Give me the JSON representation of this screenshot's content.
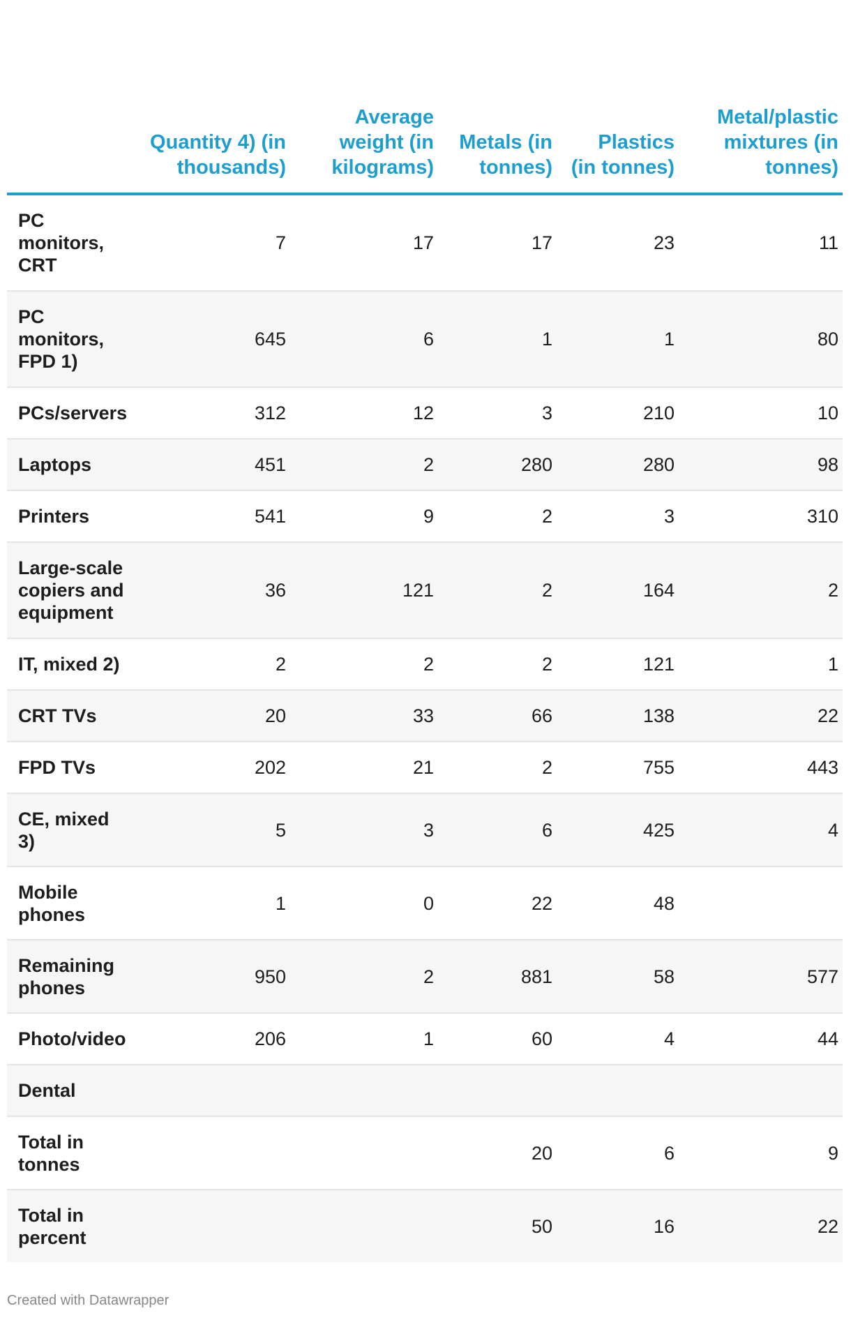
{
  "chart_data": {
    "type": "table",
    "columns": [
      "",
      "Quantity 4) (in thousands)",
      "Average weight (in kilograms)",
      "Metals (in tonnes)",
      "Plastics (in tonnes)",
      "Metal/plastic mixtures (in tonnes)"
    ],
    "rows": [
      [
        "PC monitors, CRT",
        "7",
        "17",
        "17",
        "23",
        "11"
      ],
      [
        "PC monitors, FPD 1)",
        "645",
        "6",
        "1",
        "1",
        "80"
      ],
      [
        "PCs/servers",
        "312",
        "12",
        "3",
        "210",
        "10"
      ],
      [
        "Laptops",
        "451",
        "2",
        "280",
        "280",
        "98"
      ],
      [
        "Printers",
        "541",
        "9",
        "2",
        "3",
        "310"
      ],
      [
        "Large-scale copiers and equipment",
        "36",
        "121",
        "2",
        "164",
        "2"
      ],
      [
        "IT, mixed 2)",
        "2",
        "2",
        "2",
        "121",
        "1"
      ],
      [
        "CRT TVs",
        "20",
        "33",
        "66",
        "138",
        "22"
      ],
      [
        "FPD TVs",
        "202",
        "21",
        "2",
        "755",
        "443"
      ],
      [
        "CE, mixed 3)",
        "5",
        "3",
        "6",
        "425",
        "4"
      ],
      [
        "Mobile phones",
        "1",
        "0",
        "22",
        "48",
        ""
      ],
      [
        "Remaining phones",
        "950",
        "2",
        "881",
        "58",
        "577"
      ],
      [
        "Photo/video",
        "206",
        "1",
        "60",
        "4",
        "44"
      ],
      [
        "Dental",
        "",
        "",
        "",
        "",
        ""
      ],
      [
        "Total in tonnes",
        "",
        "",
        "20",
        "6",
        "9"
      ],
      [
        "Total in percent",
        "",
        "",
        "50",
        "16",
        "22"
      ]
    ],
    "colors": {
      "header": "#1e9ecf",
      "stripe": "#f6f6f6",
      "rule": "#e4e4e4"
    }
  },
  "footer": {
    "credit": "Created with Datawrapper"
  }
}
